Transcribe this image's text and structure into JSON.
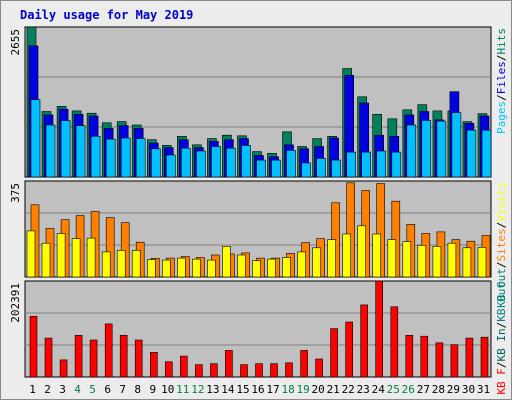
{
  "title": "Daily usage for May 2019",
  "colors": {
    "background": "#ececec",
    "plot_bg": "#c0c0c0",
    "hits": "#00805c",
    "files": "#0000e0",
    "pages": "#00c0ff",
    "visits": "#ffff00",
    "sites": "#ff8000",
    "kbf": "#ff0000",
    "kbin": "#006060",
    "kbout": "#008080",
    "title": "#0000c8",
    "weekend_label": "#008040"
  },
  "chart_data": [
    {
      "type": "bar",
      "panel": "hits-files-pages",
      "ymax_label": "2655",
      "ylim": [
        0,
        2655
      ],
      "legend": [
        {
          "text": "Pages",
          "color": "#00c0ff"
        },
        {
          "text": "/",
          "color": "#000000"
        },
        {
          "text": "Files",
          "color": "#0000e0"
        },
        {
          "text": "/",
          "color": "#000000"
        },
        {
          "text": "Hits",
          "color": "#00805c"
        }
      ],
      "categories": [
        "1",
        "2",
        "3",
        "4",
        "5",
        "6",
        "7",
        "8",
        "9",
        "10",
        "11",
        "12",
        "13",
        "14",
        "15",
        "16",
        "17",
        "18",
        "19",
        "20",
        "21",
        "22",
        "23",
        "24",
        "25",
        "26",
        "27",
        "28",
        "29",
        "30",
        "31"
      ],
      "series": [
        {
          "name": "Hits",
          "color": "#00805c",
          "values": [
            2655,
            1160,
            1250,
            1170,
            1130,
            960,
            980,
            920,
            660,
            560,
            720,
            570,
            680,
            740,
            730,
            450,
            420,
            800,
            540,
            680,
            720,
            1920,
            1420,
            1110,
            1030,
            1190,
            1280,
            1170,
            1170,
            980,
            1120
          ]
        },
        {
          "name": "Files",
          "color": "#0000e0",
          "values": [
            2320,
            1100,
            1200,
            1110,
            1080,
            860,
            910,
            860,
            600,
            520,
            660,
            520,
            630,
            660,
            680,
            380,
            360,
            570,
            500,
            540,
            690,
            1800,
            1310,
            740,
            720,
            1100,
            1160,
            1010,
            1510,
            950,
            1080
          ]
        },
        {
          "name": "Pages",
          "color": "#00c0ff",
          "values": [
            1370,
            920,
            1000,
            910,
            720,
            670,
            690,
            680,
            500,
            390,
            510,
            460,
            540,
            510,
            560,
            300,
            300,
            470,
            250,
            330,
            300,
            440,
            440,
            460,
            440,
            920,
            1000,
            990,
            1140,
            830,
            830
          ]
        }
      ]
    },
    {
      "type": "bar",
      "panel": "visits-sites-kbout",
      "ymax_label": "375",
      "ylim": [
        0,
        375
      ],
      "legend": [
        {
          "text": "KB Out",
          "color": "#008080"
        },
        {
          "text": "/",
          "color": "#000000"
        },
        {
          "text": "Sites",
          "color": "#ff8000"
        },
        {
          "text": "/",
          "color": "#000000"
        },
        {
          "text": "Visits",
          "color": "#ffff00"
        }
      ],
      "categories": [
        "1",
        "2",
        "3",
        "4",
        "5",
        "6",
        "7",
        "8",
        "9",
        "10",
        "11",
        "12",
        "13",
        "14",
        "15",
        "16",
        "17",
        "18",
        "19",
        "20",
        "21",
        "22",
        "23",
        "24",
        "25",
        "26",
        "27",
        "28",
        "29",
        "30",
        "31"
      ],
      "series": [
        {
          "name": "Sites",
          "color": "#ff8000",
          "values": [
            282,
            190,
            224,
            240,
            256,
            232,
            212,
            136,
            73,
            74,
            80,
            76,
            86,
            90,
            94,
            74,
            74,
            92,
            134,
            150,
            290,
            368,
            338,
            365,
            296,
            206,
            170,
            176,
            146,
            140,
            162
          ]
        },
        {
          "name": "Visits",
          "color": "#ffff00",
          "values": [
            180,
            132,
            170,
            150,
            152,
            98,
            104,
            104,
            68,
            66,
            74,
            70,
            66,
            120,
            86,
            64,
            70,
            76,
            98,
            114,
            146,
            168,
            200,
            168,
            146,
            138,
            124,
            120,
            132,
            114,
            116
          ]
        }
      ]
    },
    {
      "type": "bar",
      "panel": "kbf-kbin-kbout",
      "ymax_label": "202391",
      "ylim": [
        0,
        202391
      ],
      "legend": [
        {
          "text": "KB F",
          "color": "#ff0000"
        },
        {
          "text": "/",
          "color": "#000000"
        },
        {
          "text": "KB In",
          "color": "#006060"
        },
        {
          "text": "/",
          "color": "#000000"
        },
        {
          "text": "KB Out",
          "color": "#008080"
        }
      ],
      "categories": [
        "1",
        "2",
        "3",
        "4",
        "5",
        "6",
        "7",
        "8",
        "9",
        "10",
        "11",
        "12",
        "13",
        "14",
        "15",
        "16",
        "17",
        "18",
        "19",
        "20",
        "21",
        "22",
        "23",
        "24",
        "25",
        "26",
        "27",
        "28",
        "29",
        "30",
        "31"
      ],
      "series": [
        {
          "name": "KB F",
          "color": "#ff0000",
          "values": [
            128000,
            82000,
            36000,
            88000,
            78000,
            112000,
            88000,
            78000,
            52000,
            32000,
            44000,
            26000,
            28000,
            56000,
            26000,
            28000,
            28000,
            30000,
            56000,
            38000,
            102000,
            116000,
            152000,
            202391,
            148000,
            88000,
            86000,
            72000,
            68000,
            82000,
            84000
          ]
        }
      ]
    }
  ],
  "x_labels": {
    "days": [
      "1",
      "2",
      "3",
      "4",
      "5",
      "6",
      "7",
      "8",
      "9",
      "10",
      "11",
      "12",
      "13",
      "14",
      "15",
      "16",
      "17",
      "18",
      "19",
      "20",
      "21",
      "22",
      "23",
      "24",
      "25",
      "26",
      "27",
      "28",
      "29",
      "30",
      "31"
    ],
    "weekend": [
      4,
      5,
      11,
      12,
      18,
      19,
      25,
      26
    ]
  }
}
